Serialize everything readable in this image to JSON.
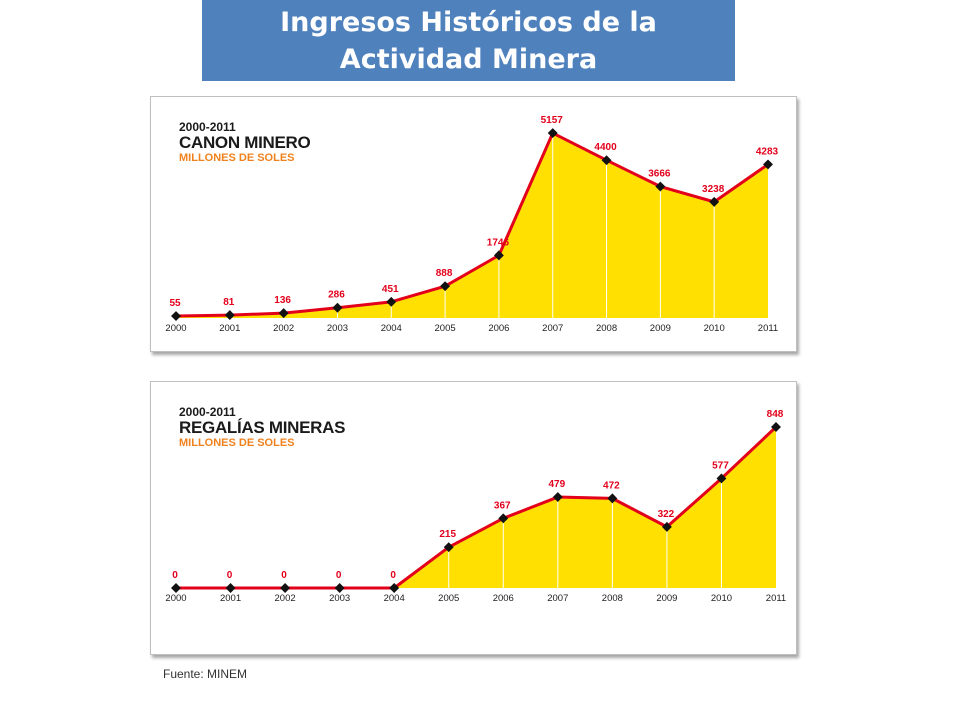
{
  "page": {
    "title_line1": "Ingresos Históricos de la",
    "title_line2": "Actividad Minera",
    "source": "Fuente: MINEM"
  },
  "colors": {
    "header_bg": "#4f81bd",
    "area_fill": "#ffe000",
    "line": "#e3001b",
    "marker": "#111111",
    "value_labels": "#e3001b",
    "subtitle": "#f0821e"
  },
  "chart_data": [
    {
      "type": "area",
      "period": "2000-2011",
      "title": "CANON MINERO",
      "subtitle": "MILLONES DE SOLES",
      "categories": [
        "2000",
        "2001",
        "2002",
        "2003",
        "2004",
        "2005",
        "2006",
        "2007",
        "2008",
        "2009",
        "2010",
        "2011"
      ],
      "values": [
        55,
        81,
        136,
        286,
        451,
        888,
        1746,
        5157,
        4400,
        3666,
        3238,
        4283
      ],
      "value_labels": [
        "55",
        "81",
        "136",
        "286",
        "451",
        "888",
        "1746",
        "5157",
        "4400",
        "3666",
        "3238",
        "4283"
      ],
      "ylim": [
        0,
        5800
      ],
      "grid": false,
      "legend": "none"
    },
    {
      "type": "area",
      "period": "2000-2011",
      "title": "REGALÍAS MINERAS",
      "subtitle": "MILLONES DE SOLES",
      "categories": [
        "2000",
        "2001",
        "2002",
        "2003",
        "2004",
        "2005",
        "2006",
        "2007",
        "2008",
        "2009",
        "2010",
        "2011"
      ],
      "values": [
        0,
        0,
        0,
        0,
        0,
        215,
        367,
        479,
        472,
        322,
        577,
        848
      ],
      "value_labels": [
        "0",
        "0",
        "0",
        "0",
        "0",
        "215",
        "367",
        "479",
        "472",
        "322",
        "577",
        "848"
      ],
      "ylim": [
        0,
        848
      ],
      "grid": false,
      "legend": "none"
    }
  ]
}
